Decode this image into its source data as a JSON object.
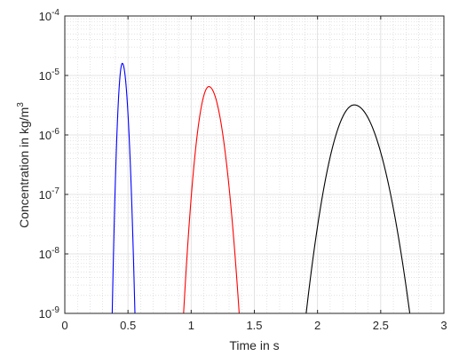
{
  "chart_data": {
    "type": "line",
    "title": "",
    "xlabel": "Time in s",
    "ylabel": {
      "text": "Concentration in kg/m",
      "sup": "3"
    },
    "xlim": [
      0,
      3
    ],
    "ylim": [
      1e-09,
      0.0001
    ],
    "yscale": "log",
    "grid": true,
    "minor_grid": true,
    "legend": "none",
    "x_ticks": [
      0,
      0.5,
      1,
      1.5,
      2,
      2.5,
      3
    ],
    "x_tick_labels": [
      "0",
      "0.5",
      "1",
      "1.5",
      "2",
      "2.5",
      "3"
    ],
    "y_ticks": [
      {
        "value": 1e-09,
        "base": "10",
        "exp": "-9"
      },
      {
        "value": 1e-08,
        "base": "10",
        "exp": "-8"
      },
      {
        "value": 1e-07,
        "base": "10",
        "exp": "-7"
      },
      {
        "value": 1e-06,
        "base": "10",
        "exp": "-6"
      },
      {
        "value": 1e-05,
        "base": "10",
        "exp": "-5"
      },
      {
        "value": 0.0001,
        "base": "10",
        "exp": "-4"
      }
    ],
    "series": [
      {
        "color": "#0000ff",
        "x_peak": 0.455,
        "y_peak": 1.6e-05,
        "x_left": 0.375,
        "x_right": 0.555
      },
      {
        "color": "#ff0000",
        "x_peak": 1.14,
        "y_peak": 6.5e-06,
        "x_left": 0.94,
        "x_right": 1.38
      },
      {
        "color": "#000000",
        "x_peak": 2.29,
        "y_peak": 3.2e-06,
        "x_left": 1.91,
        "x_right": 2.73
      }
    ]
  }
}
